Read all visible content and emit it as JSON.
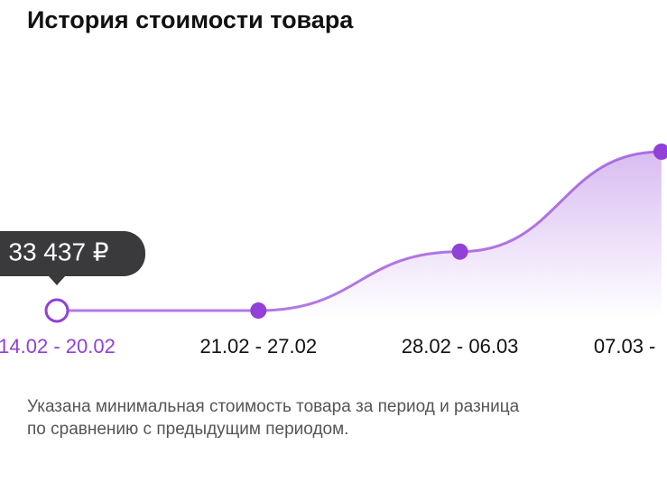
{
  "chart_data": {
    "type": "line",
    "title": "История стоимости товара",
    "categories": [
      "14.02 - 20.02",
      "21.02 - 27.02",
      "28.02 - 06.03",
      "07.03 -"
    ],
    "values": [
      33437,
      33437,
      35500,
      39000
    ],
    "value_labels": [
      "33 437 ₽",
      null,
      null,
      null
    ],
    "selected": 0,
    "color": "#9140d8",
    "note": [
      "Указана минимальная стоимость товара за период и разница",
      "по сравнению с предыдущим периодом."
    ]
  }
}
